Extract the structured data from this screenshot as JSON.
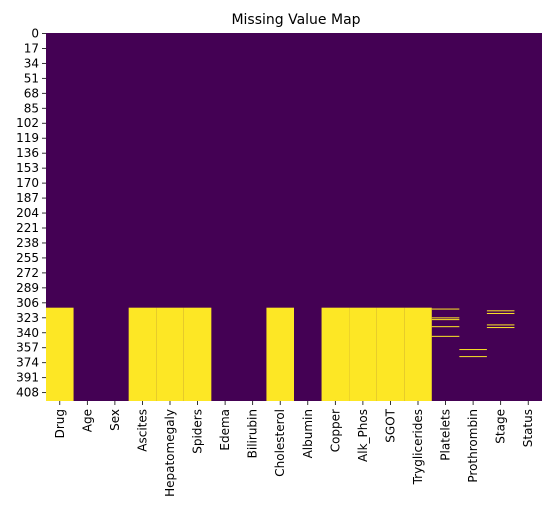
{
  "chart_data": {
    "type": "heatmap",
    "title": "Missing Value Map",
    "xlabel": "",
    "ylabel": "",
    "n_rows": 418,
    "columns": [
      "Drug",
      "Age",
      "Sex",
      "Ascites",
      "Hepatomegaly",
      "Spiders",
      "Edema",
      "Bilirubin",
      "Cholesterol",
      "Albumin",
      "Copper",
      "Alk_Phos",
      "SGOT",
      "Tryglicerides",
      "Platelets",
      "Prothrombin",
      "Stage",
      "Status"
    ],
    "row_tick_labels": [
      "0",
      "17",
      "34",
      "51",
      "68",
      "85",
      "102",
      "119",
      "136",
      "153",
      "170",
      "187",
      "204",
      "221",
      "238",
      "255",
      "272",
      "289",
      "306",
      "323",
      "340",
      "357",
      "374",
      "391",
      "408"
    ],
    "colors": {
      "present": "#440154",
      "missing": "#fde725"
    },
    "colorbar": false,
    "missing_ranges": {
      "Drug": [
        [
          312,
          418
        ]
      ],
      "Ascites": [
        [
          312,
          418
        ]
      ],
      "Hepatomegaly": [
        [
          312,
          418
        ]
      ],
      "Spiders": [
        [
          312,
          418
        ]
      ],
      "Cholesterol": [
        [
          312,
          418
        ]
      ],
      "Copper": [
        [
          312,
          418
        ]
      ],
      "Alk_Phos": [
        [
          312,
          418
        ]
      ],
      "SGOT": [
        [
          312,
          418
        ]
      ],
      "Tryglicerides": [
        [
          312,
          418
        ]
      ],
      "Platelets": [
        [
          313,
          314
        ],
        [
          323,
          324
        ],
        [
          325,
          326
        ],
        [
          333,
          334
        ],
        [
          344,
          345
        ]
      ],
      "Prothrombin": [
        [
          359,
          360
        ],
        [
          367,
          368
        ]
      ],
      "Stage": [
        [
          315,
          316
        ],
        [
          318,
          319
        ],
        [
          331,
          332
        ],
        [
          334,
          335
        ]
      ]
    }
  }
}
